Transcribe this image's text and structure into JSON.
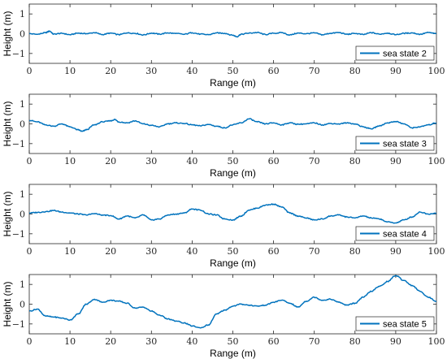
{
  "chart_data": [
    {
      "type": "line",
      "xlabel": "Range (m)",
      "ylabel": "Height (m)",
      "xlim": [
        0,
        100
      ],
      "ylim": [
        -1.5,
        1.5
      ],
      "xticks": [
        0,
        10,
        20,
        30,
        40,
        50,
        60,
        70,
        80,
        90,
        100
      ],
      "yticks": [
        -1,
        0,
        1
      ],
      "legend_position": "bottom-right",
      "series": [
        {
          "name": "sea state 2",
          "color": "#0072BD",
          "x": [
            0,
            2,
            4,
            5,
            6,
            8,
            10,
            12,
            14,
            16,
            18,
            20,
            22,
            24,
            26,
            28,
            30,
            32,
            34,
            36,
            38,
            40,
            42,
            44,
            46,
            48,
            50,
            51,
            52,
            54,
            56,
            58,
            60,
            62,
            64,
            66,
            68,
            70,
            72,
            74,
            76,
            78,
            80,
            82,
            84,
            86,
            88,
            90,
            92,
            94,
            96,
            98,
            100
          ],
          "y": [
            0,
            -0.03,
            0.05,
            0.13,
            -0.02,
            0.02,
            -0.05,
            0.03,
            0.0,
            0.05,
            -0.04,
            0.03,
            -0.05,
            0.04,
            0.02,
            -0.06,
            0.03,
            -0.02,
            0.04,
            0.01,
            -0.03,
            0.05,
            -0.02,
            -0.05,
            0.04,
            0.02,
            -0.08,
            -0.15,
            -0.03,
            0.03,
            0.06,
            -0.04,
            0.02,
            0.05,
            -0.06,
            0.03,
            0.0,
            0.04,
            -0.05,
            0.02,
            0.06,
            -0.03,
            0.01,
            -0.04,
            0.05,
            -0.02,
            0.03,
            -0.05,
            0.02,
            0.04,
            -0.03,
            0.06,
            0.0
          ]
        }
      ]
    },
    {
      "type": "line",
      "xlabel": "Range (m)",
      "ylabel": "Height (m)",
      "xlim": [
        0,
        100
      ],
      "ylim": [
        -1.5,
        1.5
      ],
      "xticks": [
        0,
        10,
        20,
        30,
        40,
        50,
        60,
        70,
        80,
        90,
        100
      ],
      "yticks": [
        -1,
        0,
        1
      ],
      "legend_position": "bottom-right",
      "series": [
        {
          "name": "sea state 3",
          "color": "#0072BD",
          "x": [
            0,
            2,
            4,
            6,
            8,
            10,
            12,
            13,
            14,
            16,
            18,
            20,
            21,
            22,
            24,
            26,
            28,
            30,
            32,
            34,
            36,
            38,
            40,
            42,
            44,
            46,
            48,
            50,
            52,
            54,
            56,
            58,
            60,
            62,
            64,
            66,
            68,
            70,
            72,
            74,
            76,
            78,
            80,
            82,
            84,
            86,
            88,
            90,
            92,
            94,
            96,
            98,
            100
          ],
          "y": [
            0.18,
            0.1,
            -0.05,
            -0.12,
            0.0,
            -0.15,
            -0.3,
            -0.38,
            -0.3,
            -0.05,
            0.1,
            0.15,
            0.22,
            0.1,
            0.05,
            0.15,
            0.0,
            -0.08,
            -0.15,
            0.0,
            0.05,
            0.02,
            -0.05,
            -0.1,
            -0.03,
            -0.12,
            -0.2,
            -0.05,
            0.05,
            0.25,
            0.1,
            0.0,
            0.05,
            -0.05,
            0.05,
            -0.02,
            0.0,
            0.05,
            -0.05,
            0.02,
            0.0,
            0.05,
            0.0,
            -0.15,
            -0.25,
            -0.1,
            0.05,
            0.12,
            0.0,
            -0.2,
            -0.15,
            -0.05,
            0.05
          ]
        }
      ]
    },
    {
      "type": "line",
      "xlabel": "Range (m)",
      "ylabel": "Height (m)",
      "xlim": [
        0,
        100
      ],
      "ylim": [
        -1.5,
        1.5
      ],
      "xticks": [
        0,
        10,
        20,
        30,
        40,
        50,
        60,
        70,
        80,
        90,
        100
      ],
      "yticks": [
        -1,
        0,
        1
      ],
      "legend_position": "bottom-right",
      "series": [
        {
          "name": "sea state 4",
          "color": "#0072BD",
          "x": [
            0,
            2,
            4,
            6,
            8,
            10,
            12,
            14,
            16,
            18,
            20,
            22,
            24,
            26,
            28,
            30,
            32,
            34,
            36,
            38,
            40,
            42,
            44,
            46,
            48,
            50,
            52,
            54,
            56,
            58,
            60,
            62,
            64,
            66,
            68,
            70,
            72,
            74,
            76,
            78,
            80,
            82,
            84,
            86,
            88,
            90,
            92,
            94,
            96,
            98,
            100
          ],
          "y": [
            0.05,
            0.08,
            0.12,
            0.18,
            0.1,
            0.05,
            0.0,
            -0.05,
            0.02,
            -0.05,
            -0.08,
            -0.25,
            -0.1,
            -0.2,
            -0.05,
            -0.3,
            -0.25,
            -0.05,
            0.0,
            0.05,
            0.25,
            0.2,
            0.0,
            -0.05,
            -0.25,
            -0.3,
            -0.1,
            0.2,
            0.3,
            0.45,
            0.5,
            0.35,
            0.05,
            -0.1,
            -0.2,
            -0.3,
            -0.25,
            -0.1,
            -0.05,
            -0.15,
            -0.2,
            -0.1,
            -0.2,
            -0.25,
            -0.4,
            -0.45,
            -0.3,
            -0.15,
            0.1,
            0.0,
            0.05
          ]
        }
      ]
    },
    {
      "type": "line",
      "xlabel": "Range (m)",
      "ylabel": "Height (m)",
      "xlim": [
        0,
        100
      ],
      "ylim": [
        -1.5,
        1.5
      ],
      "xticks": [
        0,
        10,
        20,
        30,
        40,
        50,
        60,
        70,
        80,
        90,
        100
      ],
      "yticks": [
        -1,
        0,
        1
      ],
      "legend_position": "bottom-right",
      "series": [
        {
          "name": "sea state 5",
          "color": "#0072BD",
          "x": [
            0,
            2,
            4,
            6,
            8,
            10,
            12,
            14,
            16,
            18,
            20,
            22,
            24,
            26,
            28,
            30,
            32,
            34,
            36,
            38,
            40,
            42,
            44,
            46,
            48,
            50,
            52,
            54,
            56,
            58,
            60,
            62,
            64,
            66,
            68,
            70,
            72,
            74,
            76,
            78,
            80,
            82,
            84,
            86,
            88,
            90,
            92,
            94,
            96,
            98,
            100
          ],
          "y": [
            -0.35,
            -0.25,
            -0.6,
            -0.65,
            -0.7,
            -0.8,
            -0.5,
            0.0,
            0.25,
            0.1,
            0.2,
            0.15,
            0.05,
            -0.2,
            -0.15,
            -0.35,
            -0.55,
            -0.75,
            -0.85,
            -0.95,
            -1.1,
            -1.2,
            -1.05,
            -0.5,
            -0.3,
            -0.1,
            0.0,
            -0.05,
            -0.1,
            -0.05,
            0.1,
            0.2,
            0.05,
            -0.15,
            0.15,
            0.35,
            0.2,
            0.25,
            0.1,
            -0.05,
            0.05,
            0.35,
            0.65,
            0.9,
            1.15,
            1.45,
            1.2,
            0.95,
            0.65,
            0.35,
            0.15
          ]
        }
      ]
    }
  ]
}
